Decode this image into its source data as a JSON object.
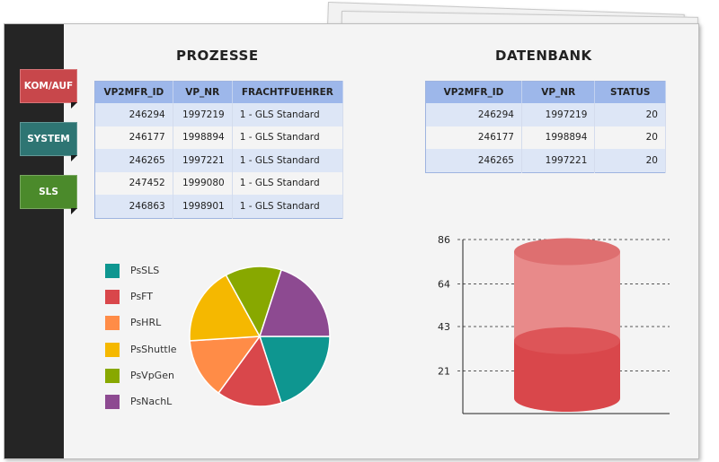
{
  "nav": {
    "kom_auf": "KOM/AUF",
    "system": "SYSTEM",
    "sls": "SLS"
  },
  "colors": {
    "nav_kom_auf": "#c8474b",
    "nav_system": "#2e7573",
    "nav_sls": "#4b8a2b",
    "table_header": "#9db7ea",
    "cylinder_red": "#d9474b",
    "cylinder_light": "#e88a8a"
  },
  "prozesse": {
    "title": "PROZESSE",
    "headers": [
      "VP2MFR_ID",
      "VP_NR",
      "FRACHTFUEHRER"
    ],
    "rows": [
      [
        "246294",
        "1997219",
        "1 - GLS Standard"
      ],
      [
        "246177",
        "1998894",
        "1 - GLS Standard"
      ],
      [
        "246265",
        "1997221",
        "1 - GLS Standard"
      ],
      [
        "247452",
        "1999080",
        "1 - GLS Standard"
      ],
      [
        "246863",
        "1998901",
        "1 - GLS Standard"
      ]
    ]
  },
  "datenbank": {
    "title": "DATENBANK",
    "headers": [
      "VP2MFR_ID",
      "VP_NR",
      "STATUS"
    ],
    "rows": [
      [
        "246294",
        "1997219",
        "20"
      ],
      [
        "246177",
        "1998894",
        "20"
      ],
      [
        "246265",
        "1997221",
        "20"
      ]
    ]
  },
  "chart_data": [
    {
      "type": "pie",
      "labels": [
        "PsSLS",
        "PsFT",
        "PsHRL",
        "PsShuttle",
        "PsVpGen",
        "PsNachL"
      ],
      "values": [
        20,
        15,
        14,
        18,
        13,
        20
      ],
      "colors": [
        "#0e9690",
        "#d9474b",
        "#ff8c47",
        "#f5b800",
        "#88a800",
        "#8d4a91"
      ],
      "legend": "left"
    },
    {
      "type": "bar",
      "subtype": "cylinder-gauge",
      "yticks": [
        21,
        43,
        64,
        86
      ],
      "ylim": [
        0,
        86
      ],
      "fill_value": 36,
      "capacity": 80,
      "grid": true
    }
  ]
}
